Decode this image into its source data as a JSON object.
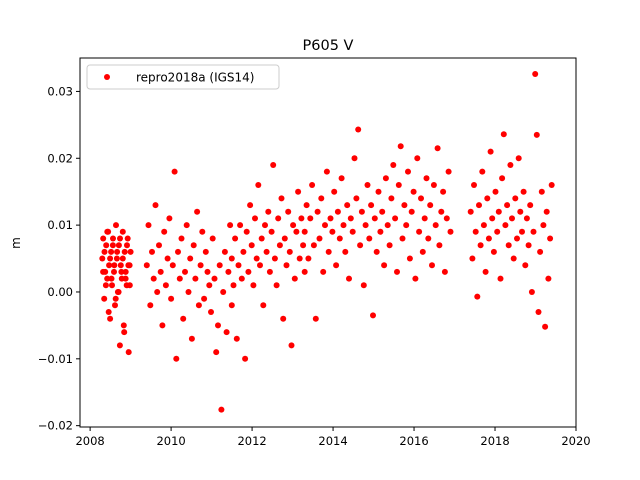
{
  "chart_data": {
    "type": "scatter",
    "title": "P605 V",
    "xlabel": "",
    "ylabel": "m",
    "xlim": [
      2007.75,
      2020
    ],
    "ylim": [
      -0.0202,
      0.035
    ],
    "x_ticks": [
      2008,
      2010,
      2012,
      2014,
      2016,
      2018,
      2020
    ],
    "x_tick_labels": [
      "2008",
      "2010",
      "2012",
      "2014",
      "2016",
      "2018",
      "2020"
    ],
    "y_ticks": [
      -0.02,
      -0.01,
      0.0,
      0.01,
      0.02,
      0.03
    ],
    "y_tick_labels": [
      "−0.02",
      "−0.01",
      "0.00",
      "0.01",
      "0.02",
      "0.03"
    ],
    "grid": false,
    "legend": {
      "position": "top-left",
      "entries": [
        "repro2018a (IGS14)"
      ]
    },
    "series": [
      {
        "name": "repro2018a (IGS14)",
        "color": "#ff0000",
        "marker": "circle",
        "segments": [
          {
            "x_start": 2008.3,
            "x_end": 2009.0,
            "values": [
              0.005,
              0.008,
              -0.001,
              0.003,
              0.007,
              0.002,
              0.009,
              0.004,
              -0.004,
              0.006,
              0.001,
              0.008,
              0.003,
              -0.002,
              0.01,
              0.005,
              0.0,
              0.007,
              -0.008,
              0.004,
              0.002,
              0.009,
              -0.005,
              0.006,
              0.003,
              0.001,
              0.008,
              -0.009,
              0.004,
              0.006
            ]
          },
          {
            "x_start": 2008.32,
            "x_end": 2008.98,
            "values": [
              0.003,
              0.006,
              0.001,
              0.009,
              -0.003,
              0.005,
              0.002,
              0.007,
              0.004,
              -0.001,
              0.006,
              0.0,
              0.008,
              0.003,
              0.005,
              -0.006,
              0.002,
              0.007,
              0.004,
              0.001
            ]
          },
          {
            "x_start": 2009.4,
            "x_end": 2011.5,
            "values": [
              0.004,
              0.01,
              -0.002,
              0.006,
              0.002,
              0.013,
              0.0,
              0.007,
              0.003,
              -0.005,
              0.009,
              0.001,
              0.005,
              0.011,
              -0.001,
              0.004,
              0.018,
              -0.01,
              0.006,
              0.002,
              0.008,
              -0.004,
              0.003,
              0.01,
              0.0,
              0.005,
              -0.007,
              0.007,
              0.002,
              0.012,
              -0.002,
              0.004,
              0.009,
              -0.001,
              0.006,
              0.003,
              0.001,
              -0.003,
              0.008,
              0.002,
              -0.009,
              -0.005,
              0.004,
              -0.0176,
              0.0,
              0.006,
              -0.006,
              0.003,
              0.01,
              -0.002
            ]
          },
          {
            "x_start": 2011.5,
            "x_end": 2013.3,
            "values": [
              0.005,
              0.001,
              0.008,
              -0.007,
              0.004,
              0.01,
              0.002,
              0.006,
              -0.01,
              0.009,
              0.003,
              0.013,
              0.007,
              0.001,
              0.011,
              0.005,
              0.016,
              0.004,
              0.008,
              -0.002,
              0.01,
              0.006,
              0.012,
              0.003,
              0.009,
              0.019,
              0.005,
              0.001,
              0.011,
              0.007,
              0.014,
              -0.004,
              0.008,
              0.004,
              0.012,
              0.006,
              -0.008,
              0.01,
              0.002,
              0.009,
              0.015,
              0.005,
              0.011,
              0.007,
              0.003
            ]
          },
          {
            "x_start": 2013.3,
            "x_end": 2016.9,
            "values": [
              0.009,
              0.013,
              0.005,
              0.011,
              0.016,
              0.007,
              -0.004,
              0.012,
              0.008,
              0.014,
              0.003,
              0.01,
              0.018,
              0.006,
              0.011,
              0.009,
              0.015,
              0.004,
              0.012,
              0.008,
              0.017,
              0.01,
              0.006,
              0.013,
              0.002,
              0.011,
              0.009,
              0.02,
              0.014,
              0.0243,
              0.007,
              0.012,
              0.001,
              0.01,
              0.016,
              0.008,
              0.013,
              -0.0035,
              0.011,
              0.006,
              0.015,
              0.009,
              0.012,
              0.004,
              0.017,
              0.01,
              0.007,
              0.014,
              0.019,
              0.011,
              0.003,
              0.016,
              0.0218,
              0.008,
              0.013,
              0.01,
              0.018,
              0.005,
              0.012,
              0.015,
              0.002,
              0.02,
              0.009,
              0.014,
              0.006,
              0.011,
              0.017,
              0.008,
              0.013,
              0.004,
              0.016,
              0.01,
              0.0215,
              0.007,
              0.012,
              0.015,
              0.003,
              0.011,
              0.018,
              0.009
            ]
          },
          {
            "x_start": 2017.4,
            "x_end": 2019.4,
            "values": [
              0.012,
              0.005,
              0.016,
              0.009,
              -0.0007,
              0.013,
              0.007,
              0.018,
              0.01,
              0.003,
              0.014,
              0.008,
              0.021,
              0.011,
              0.006,
              0.015,
              0.009,
              0.012,
              0.002,
              0.017,
              0.0236,
              0.01,
              0.013,
              0.007,
              0.019,
              0.011,
              0.005,
              0.014,
              0.008,
              0.02,
              0.012,
              0.009,
              0.015,
              0.004,
              0.011,
              0.007,
              0.013,
              0.0,
              0.009,
              0.0326,
              0.0235,
              -0.003,
              0.006,
              0.015,
              0.01,
              -0.0052,
              0.012,
              0.002,
              0.008,
              0.016
            ]
          }
        ]
      }
    ]
  }
}
